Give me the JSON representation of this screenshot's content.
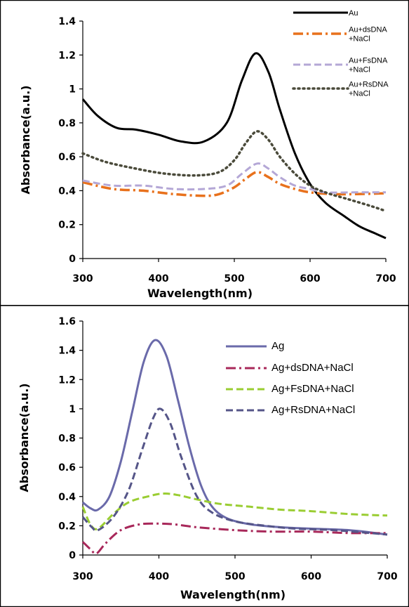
{
  "chart_data": [
    {
      "type": "line",
      "xlabel": "Wavelength(nm)",
      "ylabel": "Absorbance(a.u.)",
      "xlim": [
        300,
        700
      ],
      "ylim": [
        0,
        1.4
      ],
      "xticks": [
        "300",
        "400",
        "500",
        "600",
        "700"
      ],
      "yticks": [
        "0",
        "0.2",
        "0.4",
        "0.6",
        "0.8",
        "1",
        "1.2",
        "1.4"
      ],
      "legend_position": "top-right",
      "series": [
        {
          "name": "Au",
          "color": "#000000",
          "style": "solid",
          "points": [
            [
              300,
              0.94
            ],
            [
              320,
              0.84
            ],
            [
              345,
              0.77
            ],
            [
              370,
              0.76
            ],
            [
              400,
              0.73
            ],
            [
              430,
              0.69
            ],
            [
              460,
              0.69
            ],
            [
              490,
              0.8
            ],
            [
              510,
              1.05
            ],
            [
              528,
              1.21
            ],
            [
              545,
              1.1
            ],
            [
              560,
              0.88
            ],
            [
              580,
              0.62
            ],
            [
              600,
              0.44
            ],
            [
              620,
              0.33
            ],
            [
              645,
              0.25
            ],
            [
              665,
              0.19
            ],
            [
              685,
              0.15
            ],
            [
              700,
              0.12
            ]
          ]
        },
        {
          "name": "Au+dsDNA\n+NaCl",
          "color": "#e8711c",
          "style": "dashdot",
          "points": [
            [
              300,
              0.45
            ],
            [
              340,
              0.41
            ],
            [
              380,
              0.4
            ],
            [
              420,
              0.38
            ],
            [
              460,
              0.37
            ],
            [
              480,
              0.38
            ],
            [
              500,
              0.42
            ],
            [
              515,
              0.47
            ],
            [
              530,
              0.51
            ],
            [
              545,
              0.48
            ],
            [
              560,
              0.44
            ],
            [
              580,
              0.41
            ],
            [
              600,
              0.39
            ],
            [
              630,
              0.38
            ],
            [
              660,
              0.38
            ],
            [
              700,
              0.385
            ]
          ]
        },
        {
          "name": "Au+FsDNA\n+NaCl",
          "color": "#b4a7d6",
          "style": "dashed",
          "points": [
            [
              300,
              0.46
            ],
            [
              340,
              0.43
            ],
            [
              380,
              0.43
            ],
            [
              420,
              0.41
            ],
            [
              460,
              0.41
            ],
            [
              490,
              0.43
            ],
            [
              510,
              0.5
            ],
            [
              530,
              0.56
            ],
            [
              545,
              0.53
            ],
            [
              560,
              0.48
            ],
            [
              580,
              0.43
            ],
            [
              600,
              0.41
            ],
            [
              620,
              0.39
            ],
            [
              660,
              0.39
            ],
            [
              700,
              0.39
            ]
          ]
        },
        {
          "name": "Au+RsDNA\n+NaCl",
          "color": "#4a4a3a",
          "style": "dotted",
          "points": [
            [
              300,
              0.62
            ],
            [
              330,
              0.57
            ],
            [
              370,
              0.53
            ],
            [
              410,
              0.5
            ],
            [
              450,
              0.49
            ],
            [
              480,
              0.51
            ],
            [
              500,
              0.58
            ],
            [
              515,
              0.68
            ],
            [
              530,
              0.75
            ],
            [
              545,
              0.7
            ],
            [
              560,
              0.6
            ],
            [
              580,
              0.5
            ],
            [
              600,
              0.43
            ],
            [
              620,
              0.39
            ],
            [
              650,
              0.35
            ],
            [
              680,
              0.31
            ],
            [
              700,
              0.28
            ]
          ]
        }
      ]
    },
    {
      "type": "line",
      "xlabel": "Wavelength(nm)",
      "ylabel": "Absorbance(a.u.)",
      "xlim": [
        300,
        700
      ],
      "ylim": [
        0,
        1.6
      ],
      "xticks": [
        "300",
        "400",
        "500",
        "600",
        "700"
      ],
      "yticks": [
        "0",
        "0.2",
        "0.4",
        "0.6",
        "0.8",
        "1",
        "1.2",
        "1.4",
        "1.6"
      ],
      "legend_position": "top-right",
      "series": [
        {
          "name": "Ag",
          "color": "#6a6aaa",
          "style": "solid",
          "points": [
            [
              300,
              0.36
            ],
            [
              310,
              0.32
            ],
            [
              320,
              0.31
            ],
            [
              335,
              0.4
            ],
            [
              350,
              0.64
            ],
            [
              365,
              0.98
            ],
            [
              380,
              1.32
            ],
            [
              395,
              1.47
            ],
            [
              410,
              1.36
            ],
            [
              425,
              1.06
            ],
            [
              440,
              0.74
            ],
            [
              455,
              0.48
            ],
            [
              470,
              0.33
            ],
            [
              490,
              0.25
            ],
            [
              520,
              0.21
            ],
            [
              560,
              0.19
            ],
            [
              600,
              0.18
            ],
            [
              650,
              0.17
            ],
            [
              700,
              0.14
            ]
          ]
        },
        {
          "name": "Ag+dsDNA+NaCl",
          "color": "#a8285a",
          "style": "dashdot",
          "points": [
            [
              300,
              0.09
            ],
            [
              310,
              0.04
            ],
            [
              318,
              0.01
            ],
            [
              330,
              0.08
            ],
            [
              350,
              0.17
            ],
            [
              375,
              0.21
            ],
            [
              400,
              0.215
            ],
            [
              420,
              0.21
            ],
            [
              450,
              0.19
            ],
            [
              500,
              0.17
            ],
            [
              550,
              0.16
            ],
            [
              600,
              0.16
            ],
            [
              650,
              0.15
            ],
            [
              700,
              0.15
            ]
          ]
        },
        {
          "name": "Ag+FsDNA+NaCl",
          "color": "#9acd32",
          "style": "dashed",
          "points": [
            [
              300,
              0.33
            ],
            [
              310,
              0.21
            ],
            [
              320,
              0.18
            ],
            [
              340,
              0.28
            ],
            [
              360,
              0.36
            ],
            [
              385,
              0.4
            ],
            [
              405,
              0.42
            ],
            [
              425,
              0.41
            ],
            [
              450,
              0.38
            ],
            [
              480,
              0.35
            ],
            [
              520,
              0.33
            ],
            [
              560,
              0.31
            ],
            [
              600,
              0.3
            ],
            [
              650,
              0.28
            ],
            [
              700,
              0.27
            ]
          ]
        },
        {
          "name": "Ag+RsDNA+NaCl",
          "color": "#555588",
          "style": "dashed",
          "points": [
            [
              300,
              0.26
            ],
            [
              312,
              0.19
            ],
            [
              320,
              0.17
            ],
            [
              340,
              0.26
            ],
            [
              360,
              0.44
            ],
            [
              378,
              0.72
            ],
            [
              392,
              0.93
            ],
            [
              402,
              1.0
            ],
            [
              415,
              0.9
            ],
            [
              430,
              0.66
            ],
            [
              450,
              0.4
            ],
            [
              470,
              0.29
            ],
            [
              500,
              0.23
            ],
            [
              540,
              0.2
            ],
            [
              580,
              0.18
            ],
            [
              630,
              0.17
            ],
            [
              700,
              0.14
            ]
          ]
        }
      ]
    }
  ]
}
